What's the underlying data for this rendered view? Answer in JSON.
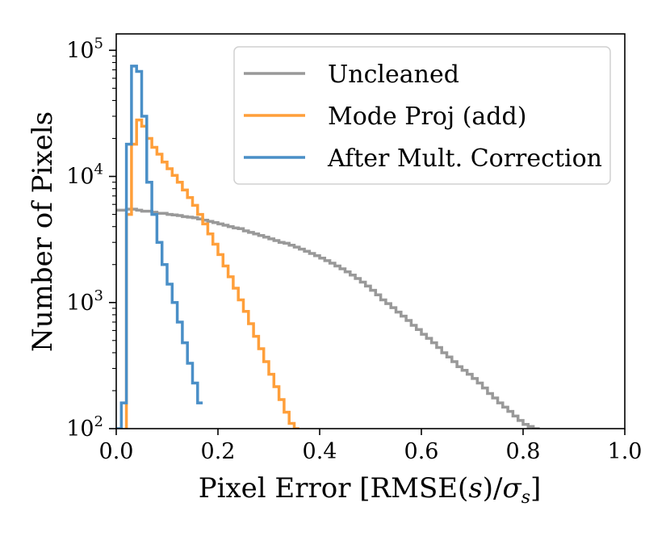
{
  "chart_data": {
    "type": "histogram",
    "title": "",
    "xlabel": "Pixel Error [RMSE(",
    "xlabel_s": "s",
    "xlabel_slash": ")/",
    "xlabel_sigma": "σ",
    "xlabel_sub": "s",
    "xlabel_end": "]",
    "ylabel": "Number of Pixels",
    "xlim": [
      0.0,
      1.0
    ],
    "ylim_log10": [
      2,
      5.13
    ],
    "yscale": "log",
    "x_ticks": [
      {
        "v": 0.0,
        "label": "0.0"
      },
      {
        "v": 0.2,
        "label": "0.2"
      },
      {
        "v": 0.4,
        "label": "0.4"
      },
      {
        "v": 0.6,
        "label": "0.6"
      },
      {
        "v": 0.8,
        "label": "0.8"
      },
      {
        "v": 1.0,
        "label": "1.0"
      }
    ],
    "y_ticks": [
      {
        "exp": 2,
        "base": "10",
        "sup": "2"
      },
      {
        "exp": 3,
        "base": "10",
        "sup": "3"
      },
      {
        "exp": 4,
        "base": "10",
        "sup": "4"
      },
      {
        "exp": 5,
        "base": "10",
        "sup": "5"
      }
    ],
    "legend_position": "top-right",
    "series": [
      {
        "name": "Uncleaned",
        "color": "#999999",
        "bin_width": 0.01,
        "edges_start": 0.0,
        "counts": [
          5400,
          5400,
          5500,
          5500,
          5400,
          5300,
          5300,
          5200,
          5100,
          5100,
          5000,
          4950,
          4900,
          4800,
          4750,
          4700,
          4600,
          4500,
          4400,
          4300,
          4200,
          4100,
          4000,
          3900,
          3850,
          3700,
          3600,
          3500,
          3400,
          3300,
          3200,
          3100,
          3000,
          2950,
          2850,
          2750,
          2650,
          2550,
          2450,
          2350,
          2250,
          2150,
          2050,
          1950,
          1850,
          1750,
          1650,
          1550,
          1450,
          1350,
          1250,
          1150,
          1050,
          980,
          910,
          840,
          780,
          720,
          660,
          610,
          560,
          520,
          480,
          440,
          400,
          370,
          340,
          310,
          290,
          270,
          250,
          230,
          210,
          190,
          175,
          160,
          148,
          137,
          126,
          116,
          108,
          104,
          100,
          98
        ]
      },
      {
        "name": "Mode Proj (add)",
        "color": "#ff9f3a",
        "bin_width": 0.01,
        "edges_start": 0.0,
        "counts": [
          80,
          90,
          5000,
          18000,
          28000,
          25000,
          20000,
          17000,
          15000,
          13000,
          11500,
          10200,
          9000,
          7800,
          6800,
          5900,
          5000,
          4200,
          3500,
          2900,
          2400,
          1950,
          1600,
          1300,
          1050,
          850,
          680,
          540,
          430,
          340,
          270,
          215,
          170,
          135,
          110,
          100
        ]
      },
      {
        "name": "After Mult. Correction",
        "color": "#4a8fc7",
        "bin_width": 0.01,
        "edges_start": 0.0,
        "counts": [
          100,
          160,
          18000,
          75000,
          68000,
          30000,
          9000,
          5000,
          3000,
          2000,
          1400,
          1000,
          700,
          480,
          330,
          230,
          160
        ]
      }
    ]
  }
}
